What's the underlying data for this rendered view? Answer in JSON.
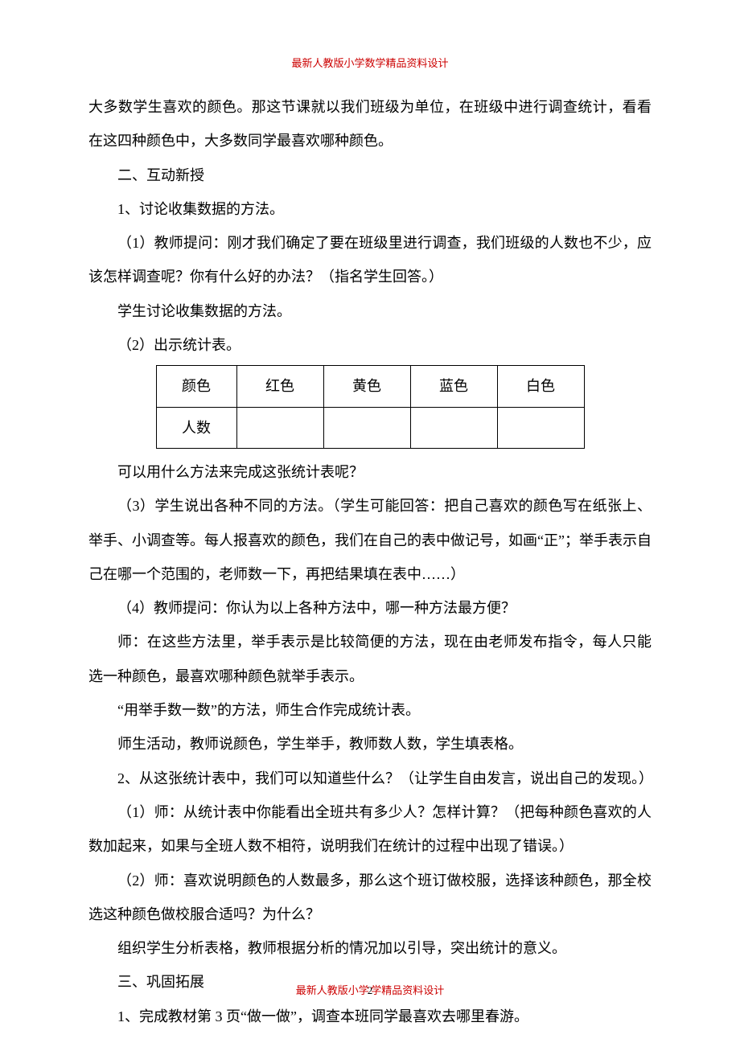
{
  "header": {
    "text": "最新人教版小学数学精品资料设计",
    "color": "#cc0000",
    "fontsize": 13
  },
  "footer": {
    "prefix": "最新人教版小学",
    "page_num": "2",
    "suffix": "学精品资料设计",
    "color": "#cc0000",
    "fontsize": 13
  },
  "paragraphs": {
    "p1": "大多数学生喜欢的颜色。那这节课就以我们班级为单位，在班级中进行调查统计，看看在这四种颜色中，大多数同学最喜欢哪种颜色。",
    "p2": "二、互动新授",
    "p3": "1、讨论收集数据的方法。",
    "p4": "（1）教师提问：刚才我们确定了要在班级里进行调查，我们班级的人数也不少，应该怎样调查呢？你有什么好的办法？（指名学生回答。）",
    "p5": "学生讨论收集数据的方法。",
    "p6": "（2）出示统计表。",
    "p7": "可以用什么方法来完成这张统计表呢？",
    "p8": "（3）学生说出各种不同的方法。（学生可能回答：把自己喜欢的颜色写在纸张上、举手、小调查等。每人报喜欢的颜色，我们在自己的表中做记号，如画“正”；举手表示自己在哪一个范围的，老师数一下，再把结果填在表中……）",
    "p9": "（4）教师提问：你认为以上各种方法中，哪一种方法最方便？",
    "p10": "师：在这些方法里，举手表示是比较简便的方法，现在由老师发布指令，每人只能选一种颜色，最喜欢哪种颜色就举手表示。",
    "p11": "“用举手数一数”的方法，师生合作完成统计表。",
    "p12": "师生活动，教师说颜色，学生举手，教师数人数，学生填表格。",
    "p13": "2、从这张统计表中，我们可以知道些什么？（让学生自由发言，说出自己的发现。）",
    "p14": "（1）师：从统计表中你能看出全班共有多少人？怎样计算？（把每种颜色喜欢的人数加起来，如果与全班人数不相符，说明我们在统计的过程中出现了错误。）",
    "p15": "（2）师：喜欢说明颜色的人数最多，那么这个班订做校服，选择该种颜色，那全校选这种颜色做校服合适吗？为什么？",
    "p16": "组织学生分析表格，教师根据分析的情况加以引导，突出统计的意义。",
    "p17": "三、巩固拓展",
    "p18": "1、完成教材第 3 页“做一做”，调查本班同学最喜欢去哪里春游。"
  },
  "table": {
    "type": "table",
    "border_color": "#000000",
    "border_width": 1.5,
    "col_widths": {
      "label": 100,
      "color": 108
    },
    "row1": {
      "c0": "颜色",
      "c1": "红色",
      "c2": "黄色",
      "c3": "蓝色",
      "c4": "白色"
    },
    "row2": {
      "c0": "人数",
      "c1": "",
      "c2": "",
      "c3": "",
      "c4": ""
    }
  },
  "body_style": {
    "font_color": "#000000",
    "font_size": 18,
    "line_height": 2.35,
    "background_color": "#ffffff"
  }
}
